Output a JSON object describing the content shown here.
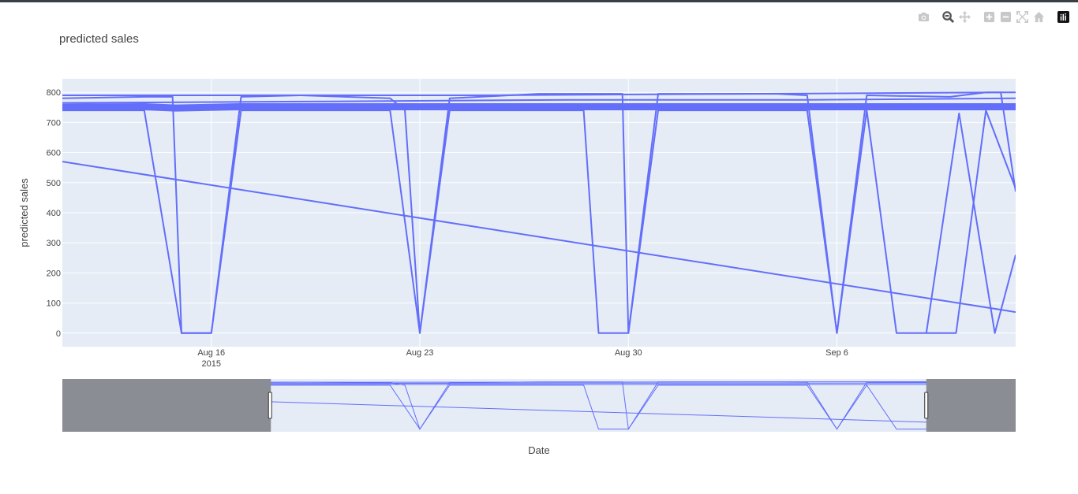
{
  "modebar": {
    "buttons": [
      {
        "icon": "camera-icon",
        "name": "download-plot-button"
      },
      {
        "icon": "zoom-icon",
        "name": "zoom-button",
        "active": true
      },
      {
        "icon": "pan-icon",
        "name": "pan-button"
      },
      {
        "icon": "zoom-in-icon",
        "name": "zoom-in-button"
      },
      {
        "icon": "zoom-out-icon",
        "name": "zoom-out-button"
      },
      {
        "icon": "autoscale-icon",
        "name": "autoscale-button"
      },
      {
        "icon": "home-icon",
        "name": "reset-axes-button"
      },
      {
        "icon": "plotly-logo-icon",
        "name": "plotly-logo"
      }
    ]
  },
  "colors": {
    "plot_bg": "#e5ecf6",
    "line": "#636efa",
    "grid": "#ffffff",
    "range_mask": "#8a8d93"
  },
  "chart_data": {
    "type": "line",
    "title": "predicted sales",
    "xlabel": "Date",
    "ylabel": "predicted sales",
    "x_ticks": [
      {
        "label": "Aug 16",
        "sub": "2015",
        "date": "2015-08-16"
      },
      {
        "label": "Aug 23",
        "sub": "",
        "date": "2015-08-23"
      },
      {
        "label": "Aug 30",
        "sub": "",
        "date": "2015-08-30"
      },
      {
        "label": "Sep 6",
        "sub": "",
        "date": "2015-09-06"
      }
    ],
    "y_ticks": [
      0,
      100,
      200,
      300,
      400,
      500,
      600,
      700,
      800
    ],
    "xlim": [
      "2015-08-11",
      "2015-09-12"
    ],
    "ylim": [
      -45,
      845
    ],
    "grid": true,
    "rangeslider": {
      "visible": true,
      "selected": [
        "2015-08-18",
        "2015-09-09"
      ]
    },
    "series": [
      {
        "points": [
          [
            "2015-08-11",
            570
          ],
          [
            "2015-09-12",
            70
          ]
        ]
      },
      {
        "points": [
          [
            "2015-08-11",
            740
          ],
          [
            "2015-08-13.75",
            740
          ],
          [
            "2015-08-15",
            0
          ],
          [
            "2015-08-16",
            0
          ],
          [
            "2015-08-17",
            740
          ],
          [
            "2015-08-22",
            740
          ],
          [
            "2015-08-23",
            0
          ],
          [
            "2015-08-24",
            740
          ],
          [
            "2015-08-28.5",
            740
          ],
          [
            "2015-08-29",
            0
          ],
          [
            "2015-08-30",
            0
          ],
          [
            "2015-08-31",
            740
          ],
          [
            "2015-09-05",
            740
          ],
          [
            "2015-09-06",
            0
          ],
          [
            "2015-09-07",
            740
          ],
          [
            "2015-09-08",
            0
          ],
          [
            "2015-09-10",
            0
          ],
          [
            "2015-09-11",
            740
          ],
          [
            "2015-09-12",
            480
          ]
        ]
      },
      {
        "points": [
          [
            "2015-08-11",
            750
          ],
          [
            "2015-08-13.75",
            752
          ],
          [
            "2015-08-14.8",
            748
          ],
          [
            "2015-08-16.9",
            752
          ],
          [
            "2015-08-21",
            752
          ],
          [
            "2015-08-22.9",
            752
          ],
          [
            "2015-08-24",
            752
          ],
          [
            "2015-08-27",
            752
          ],
          [
            "2015-08-30.9",
            752
          ],
          [
            "2015-09-04.9",
            752
          ],
          [
            "2015-09-06.9",
            752
          ],
          [
            "2015-09-09",
            752
          ],
          [
            "2015-09-12",
            752
          ]
        ]
      },
      {
        "points": [
          [
            "2015-08-11",
            780
          ],
          [
            "2015-08-13.75",
            785
          ],
          [
            "2015-08-14.7",
            785
          ],
          [
            "2015-08-15",
            0
          ],
          [
            "2015-08-16",
            0
          ],
          [
            "2015-08-17",
            785
          ],
          [
            "2015-08-19",
            790
          ],
          [
            "2015-08-22",
            780
          ],
          [
            "2015-08-22.5",
            740
          ],
          [
            "2015-08-23",
            0
          ],
          [
            "2015-08-24",
            780
          ],
          [
            "2015-08-27",
            795
          ],
          [
            "2015-08-29.8",
            795
          ],
          [
            "2015-08-30",
            0
          ],
          [
            "2015-08-31",
            795
          ],
          [
            "2015-09-04",
            795
          ],
          [
            "2015-09-05",
            790
          ],
          [
            "2015-09-06",
            0
          ],
          [
            "2015-09-07",
            790
          ],
          [
            "2015-09-09.8",
            785
          ],
          [
            "2015-09-11",
            800
          ],
          [
            "2015-09-11.5",
            800
          ],
          [
            "2015-09-12",
            470
          ]
        ]
      },
      {
        "points": [
          [
            "2015-08-11",
            765
          ],
          [
            "2015-08-20",
            770
          ],
          [
            "2015-08-28",
            775
          ],
          [
            "2015-09-05",
            775
          ],
          [
            "2015-09-12",
            780
          ]
        ]
      },
      {
        "points": [
          [
            "2015-08-11",
            790
          ],
          [
            "2015-08-25",
            790
          ],
          [
            "2015-09-12",
            800
          ]
        ]
      },
      {
        "points": [
          [
            "2015-09-09",
            0
          ],
          [
            "2015-09-10.1",
            730
          ],
          [
            "2015-09-11.3",
            0
          ],
          [
            "2015-09-12",
            260
          ]
        ]
      }
    ]
  }
}
